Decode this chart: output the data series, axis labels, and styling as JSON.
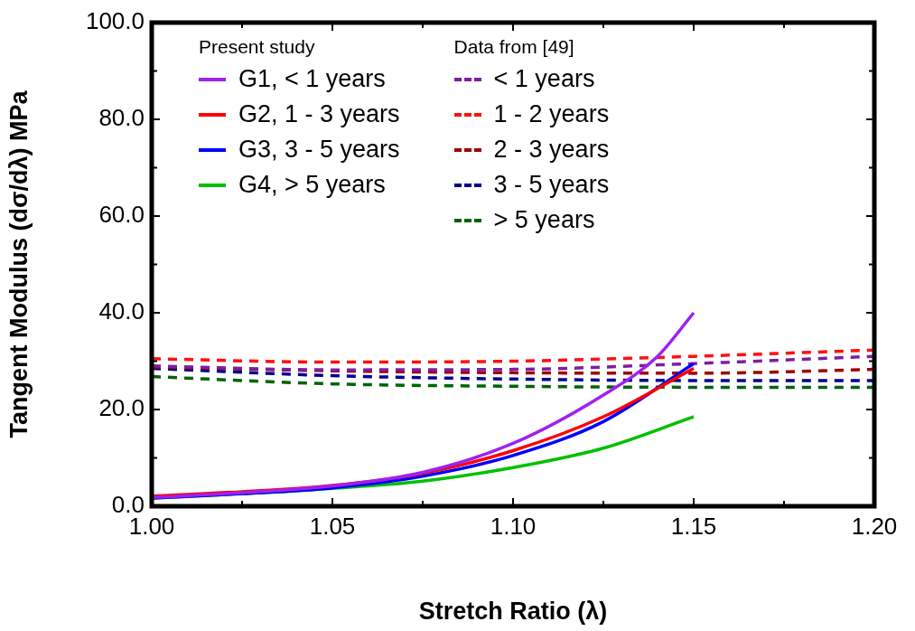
{
  "chart_data": {
    "type": "line",
    "xlabel": "Stretch Ratio (λ)",
    "ylabel": "Tangent Modulus (dσ/dλ) MPa",
    "legend_title": "Present study",
    "annotations": [
      "Data from [49]"
    ],
    "xlim": [
      1.0,
      1.2
    ],
    "ylim": [
      0,
      100
    ],
    "xticks": [
      {
        "value": 1.0,
        "label": "1.00"
      },
      {
        "value": 1.025,
        "label": null
      },
      {
        "value": 1.05,
        "label": "1.05"
      },
      {
        "value": 1.075,
        "label": null
      },
      {
        "value": 1.1,
        "label": "1.10"
      },
      {
        "value": 1.125,
        "label": null
      },
      {
        "value": 1.15,
        "label": "1.15"
      },
      {
        "value": 1.175,
        "label": null
      },
      {
        "value": 1.2,
        "label": "1.20"
      }
    ],
    "yticks": [
      {
        "value": 0,
        "label": "0.0"
      },
      {
        "value": 10,
        "label": null
      },
      {
        "value": 20,
        "label": "20.0"
      },
      {
        "value": 30,
        "label": null
      },
      {
        "value": 40,
        "label": "40.0"
      },
      {
        "value": 50,
        "label": null
      },
      {
        "value": 60,
        "label": "60.0"
      },
      {
        "value": 70,
        "label": null
      },
      {
        "value": 80,
        "label": "80.0"
      },
      {
        "value": 90,
        "label": null
      },
      {
        "value": 100,
        "label": "100.0"
      }
    ],
    "grid": false,
    "legend": "top",
    "marker": "none",
    "series": [
      {
        "name": "G1, < 1 years",
        "color": "#a020f0",
        "line_style": "solid",
        "x": [
          1.0,
          1.025,
          1.05,
          1.075,
          1.1,
          1.125,
          1.14,
          1.15
        ],
        "values": [
          1.8,
          2.8,
          4.2,
          7,
          13,
          23,
          31,
          40
        ]
      },
      {
        "name": "G2, 1 - 3 years",
        "color": "#ff0000",
        "line_style": "solid",
        "x": [
          1.0,
          1.025,
          1.05,
          1.075,
          1.1,
          1.125,
          1.15
        ],
        "values": [
          2.1,
          3.0,
          4.3,
          6.8,
          11.5,
          18.5,
          28.5
        ]
      },
      {
        "name": "G3, 3 - 5 years",
        "color": "#0000ff",
        "line_style": "solid",
        "x": [
          1.0,
          1.025,
          1.05,
          1.075,
          1.1,
          1.125,
          1.15
        ],
        "values": [
          1.7,
          2.6,
          3.8,
          6.2,
          10.5,
          17.5,
          29.5
        ]
      },
      {
        "name": "G4, > 5 years",
        "color": "#00c000",
        "line_style": "solid",
        "x": [
          1.0,
          1.025,
          1.05,
          1.075,
          1.1,
          1.125,
          1.15
        ],
        "values": [
          1.7,
          2.6,
          3.7,
          5.2,
          8,
          12,
          18.5
        ]
      },
      {
        "name": "< 1 years",
        "color": "#7b1fa2",
        "line_style": "dashed",
        "x": [
          1.0,
          1.05,
          1.1,
          1.15,
          1.2
        ],
        "values": [
          29,
          28.2,
          28.3,
          29.5,
          31
        ]
      },
      {
        "name": "1 - 2 years",
        "color": "#ff1010",
        "line_style": "dashed",
        "x": [
          1.0,
          1.05,
          1.1,
          1.15,
          1.2
        ],
        "values": [
          30.5,
          29.8,
          30,
          31,
          32.3
        ]
      },
      {
        "name": "2 - 3 years",
        "color": "#a00000",
        "line_style": "dashed",
        "x": [
          1.0,
          1.05,
          1.1,
          1.15,
          1.2
        ],
        "values": [
          28.8,
          28,
          27.6,
          27.5,
          28.3
        ]
      },
      {
        "name": "3 - 5 years",
        "color": "#000090",
        "line_style": "dashed",
        "x": [
          1.0,
          1.05,
          1.1,
          1.15,
          1.2
        ],
        "values": [
          28.5,
          27,
          26.3,
          26,
          26
        ]
      },
      {
        "name": "> 5 years",
        "color": "#006400",
        "line_style": "dashed",
        "x": [
          1.0,
          1.05,
          1.1,
          1.15,
          1.2
        ],
        "values": [
          26.8,
          25.3,
          24.8,
          24.6,
          24.6
        ]
      }
    ]
  }
}
